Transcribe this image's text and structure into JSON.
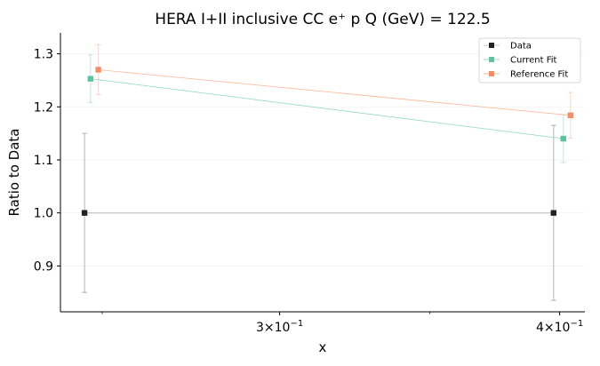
{
  "chart_data": {
    "type": "scatter",
    "title": "HERA I+II inclusive CC e⁺ p Q (GeV) = 122.5",
    "xlabel": "x",
    "ylabel": "Ratio to Data",
    "xscale": "log",
    "xlim": [
      0.2395,
      0.4105
    ],
    "ylim": [
      0.8135,
      1.3395
    ],
    "x_ticks": [
      {
        "value": 0.3,
        "label_main": "3×10",
        "label_exp": "−1"
      },
      {
        "value": 0.4,
        "label_main": "4×10",
        "label_exp": "−1"
      }
    ],
    "y_ticks": [
      0.9,
      1.0,
      1.1,
      1.2,
      1.3
    ],
    "y_tick_labels": [
      "0.9",
      "1.0",
      "1.1",
      "1.2",
      "1.3"
    ],
    "grid": "y, faint",
    "legend_position": "top-right",
    "series": [
      {
        "name": "Data",
        "color": "#222222",
        "line_color": "#c8c8c8",
        "points": [
          {
            "x": 0.2455,
            "y": 1.0,
            "yerr": 0.15
          },
          {
            "x": 0.3975,
            "y": 1.0,
            "yerr": 0.165
          }
        ]
      },
      {
        "name": "Current Fit",
        "color": "#5dc2a0",
        "line_color": "#9ed9c3",
        "points": [
          {
            "x": 0.247,
            "y": 1.253,
            "yerr": 0.045
          },
          {
            "x": 0.4015,
            "y": 1.14,
            "yerr": 0.045
          }
        ]
      },
      {
        "name": "Reference Fit",
        "color": "#f68c63",
        "line_color": "#f9bda3",
        "points": [
          {
            "x": 0.249,
            "y": 1.27,
            "yerr": 0.047
          },
          {
            "x": 0.4045,
            "y": 1.184,
            "yerr": 0.043
          }
        ]
      }
    ]
  }
}
